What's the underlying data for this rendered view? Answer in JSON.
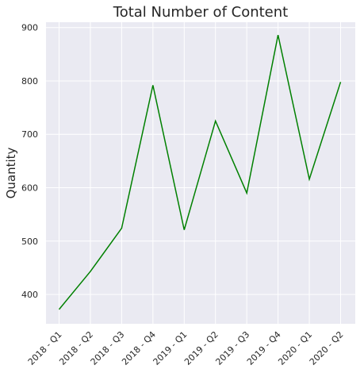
{
  "chart_data": {
    "type": "line",
    "title": "Total Number of Content",
    "xlabel": "",
    "ylabel": "Quantity",
    "categories": [
      "2018 - Q1",
      "2018 - Q2",
      "2018 - Q3",
      "2018 - Q4",
      "2019 - Q1",
      "2019 - Q2",
      "2019 - Q3",
      "2019 - Q4",
      "2020 - Q1",
      "2020 - Q2"
    ],
    "series": [
      {
        "values": [
          372,
          443,
          524,
          792,
          521,
          725,
          590,
          886,
          616,
          798
        ]
      }
    ],
    "ylim": [
      345,
      910
    ],
    "yticks": [
      400,
      500,
      600,
      700,
      800,
      900
    ],
    "grid": true,
    "line_color": "#008000",
    "background_color": "#EAEAF2",
    "grid_color": "#FFFFFF"
  }
}
